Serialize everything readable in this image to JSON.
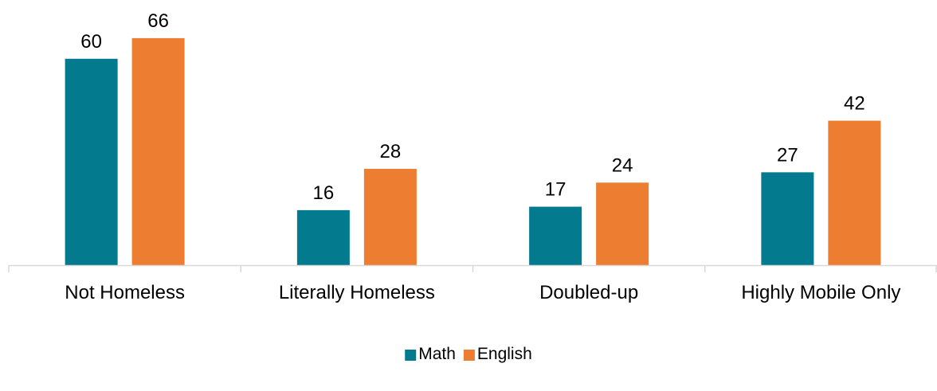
{
  "chart_data": {
    "type": "bar",
    "title": "",
    "xlabel": "",
    "ylabel": "",
    "categories": [
      "Not Homeless",
      "Literally Homeless",
      "Doubled-up",
      "Highly Mobile Only"
    ],
    "series": [
      {
        "name": "Math",
        "values": [
          60,
          16,
          17,
          27
        ],
        "color": "#037A8E"
      },
      {
        "name": "English",
        "values": [
          66,
          28,
          24,
          42
        ],
        "color": "#ED7D31"
      }
    ],
    "ylim": [
      0,
      70
    ],
    "grid": false,
    "data_labels": true,
    "legend": {
      "position": "bottom",
      "entries": [
        "Math",
        "English"
      ]
    },
    "axis_color": "#D9D9D9"
  }
}
